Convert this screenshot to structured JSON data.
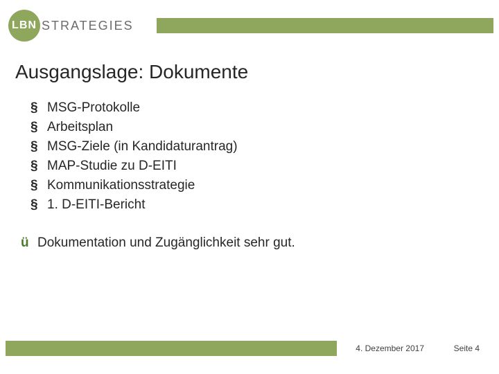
{
  "colors": {
    "accent": "#8fa65d",
    "logo_text": "#6b6b6b",
    "logo_circle_text": "#ffffff",
    "title_text": "#262626",
    "body_text": "#262626",
    "check_mark": "#4a7a2e",
    "footer_text": "#404040",
    "background": "#ffffff"
  },
  "typography": {
    "title_fontsize": 28,
    "body_fontsize": 19,
    "footer_fontsize": 12,
    "logo_text_fontsize": 18
  },
  "logo": {
    "circle_text": "LBN",
    "suffix_text": "STRATEGIES"
  },
  "title": "Ausgangslage: Dokumente",
  "bullets": {
    "marker": "§",
    "items": [
      "MSG-Protokolle",
      "Arbeitsplan",
      "MSG-Ziele (in Kandidaturantrag)",
      "MAP-Studie zu D-EITI",
      "Kommunikationsstrategie",
      "1. D-EITI-Bericht"
    ]
  },
  "check": {
    "marker": "ü",
    "text": "Dokumentation und Zugänglichkeit sehr gut."
  },
  "footer": {
    "date": "4. Dezember 2017",
    "page": "Seite 4"
  }
}
